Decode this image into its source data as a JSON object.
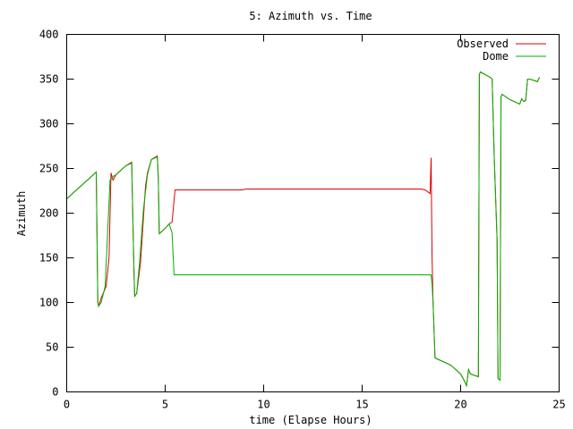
{
  "chart_data": {
    "type": "line",
    "title": "5: Azimuth vs. Time",
    "xlabel": "time (Elapse Hours)",
    "ylabel": "Azimuth",
    "xlim": [
      0,
      25
    ],
    "ylim": [
      0,
      400
    ],
    "x_ticks": [
      0,
      5,
      10,
      15,
      20,
      25
    ],
    "y_ticks": [
      0,
      50,
      100,
      150,
      200,
      250,
      300,
      350,
      400
    ],
    "grid": false,
    "legend_position": "top-right",
    "series": [
      {
        "name": "Observed",
        "color": "#e00000",
        "x": [
          0,
          1.4,
          1.5,
          1.58,
          1.62,
          1.75,
          2.0,
          2.15,
          2.25,
          2.35,
          2.5,
          3.0,
          3.3,
          3.4,
          3.45,
          3.55,
          3.75,
          4.0,
          4.1,
          4.3,
          4.6,
          4.65,
          4.7,
          5.0,
          5.2,
          5.35,
          5.5,
          8.0,
          8.9,
          9.1,
          18.0,
          18.2,
          18.45,
          18.5,
          18.55,
          18.6,
          18.7,
          19.0,
          19.5,
          20.0,
          20.2,
          20.3,
          20.4,
          20.5,
          20.9,
          20.95,
          21.0,
          21.5,
          21.6,
          21.7,
          21.85,
          21.9,
          22.0,
          22.05,
          22.1,
          22.5,
          23.0,
          23.1,
          23.2,
          23.3,
          23.4,
          23.5,
          23.8,
          23.9,
          24.0
        ],
        "y": [
          216,
          244,
          246,
          100,
          96,
          105,
          118,
          150,
          245,
          237,
          243,
          253,
          257,
          150,
          107,
          110,
          145,
          230,
          245,
          260,
          264,
          240,
          177,
          183,
          188,
          190,
          226,
          226,
          226,
          227,
          227,
          226,
          222,
          262,
          150,
          100,
          38,
          35,
          30,
          20,
          12,
          7,
          25,
          20,
          17,
          355,
          358,
          352,
          350,
          266,
          170,
          15,
          13,
          330,
          333,
          327,
          322,
          328,
          325,
          326,
          350,
          350,
          348,
          347,
          352
        ]
      },
      {
        "name": "Dome",
        "color": "#00b000",
        "x": [
          0,
          1.4,
          1.5,
          1.58,
          1.62,
          1.75,
          1.95,
          2.05,
          2.2,
          2.35,
          2.5,
          3.0,
          3.3,
          3.4,
          3.45,
          3.55,
          3.7,
          3.9,
          4.1,
          4.3,
          4.6,
          4.65,
          4.7,
          5.0,
          5.2,
          5.35,
          5.45,
          5.55,
          18.45,
          18.5,
          18.55,
          18.6,
          18.7,
          19.0,
          19.5,
          20.0,
          20.2,
          20.3,
          20.4,
          20.5,
          20.9,
          20.95,
          21.0,
          21.5,
          21.6,
          21.7,
          21.85,
          21.9,
          22.0,
          22.05,
          22.1,
          22.5,
          23.0,
          23.1,
          23.2,
          23.3,
          23.4,
          23.5,
          23.8,
          23.9,
          24.0
        ],
        "y": [
          216,
          244,
          246,
          100,
          96,
          100,
          118,
          165,
          237,
          241,
          243,
          253,
          256,
          150,
          107,
          110,
          145,
          205,
          243,
          260,
          263,
          240,
          177,
          183,
          188,
          178,
          131,
          131,
          131,
          131,
          120,
          100,
          38,
          35,
          30,
          20,
          12,
          7,
          25,
          20,
          17,
          355,
          358,
          352,
          350,
          266,
          170,
          15,
          13,
          330,
          333,
          327,
          322,
          328,
          325,
          326,
          350,
          350,
          348,
          347,
          352
        ]
      }
    ]
  }
}
